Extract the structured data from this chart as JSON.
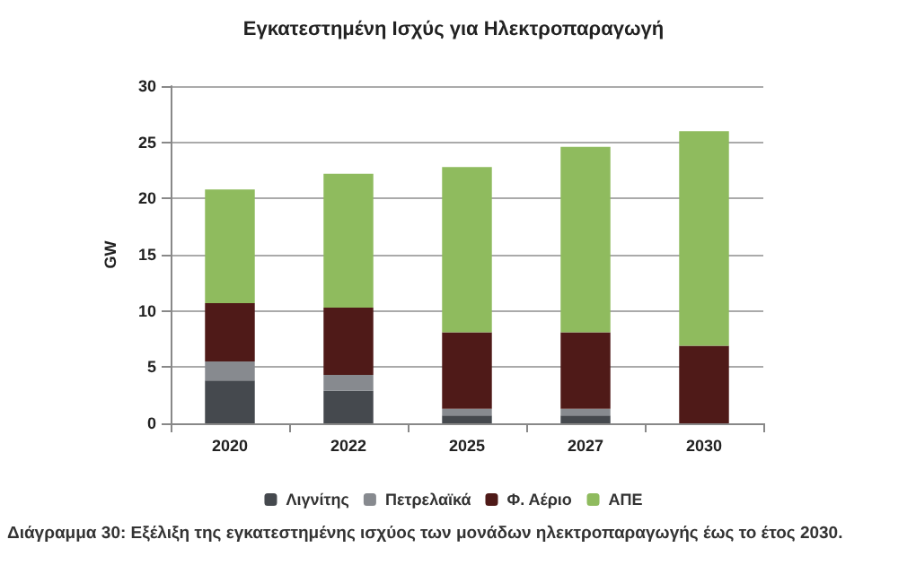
{
  "chart_data": {
    "type": "bar",
    "stacked": true,
    "title": "Εγκατεστημένη Ισχύς για Ηλεκτροπαραγωγή",
    "ylabel": "GW",
    "categories": [
      "2020",
      "2022",
      "2025",
      "2027",
      "2030"
    ],
    "series": [
      {
        "name": "Λιγνίτης",
        "color": "#45494e",
        "values": [
          3.8,
          2.9,
          0.7,
          0.7,
          0
        ]
      },
      {
        "name": "Πετρελαϊκά",
        "color": "#878a8f",
        "values": [
          1.7,
          1.4,
          0.6,
          0.6,
          0
        ]
      },
      {
        "name": "Φ. Αέριο",
        "color": "#4f1a18",
        "values": [
          5.2,
          6,
          6.8,
          6.8,
          6.9
        ]
      },
      {
        "name": "ΑΠΕ",
        "color": "#8fbb5e",
        "values": [
          10.1,
          11.9,
          14.7,
          16.5,
          19.1
        ]
      }
    ],
    "ylim": [
      0,
      30
    ],
    "yticks": [
      0,
      5,
      10,
      15,
      20,
      25,
      30
    ],
    "grid": "y",
    "legend": "bottom",
    "annotations": [
      "Διάγραμμα 30: Εξέλιξη της εγκατεστημένης ισχύος των μονάδων ηλεκτροπαραγωγής έως το έτος 2030."
    ]
  }
}
